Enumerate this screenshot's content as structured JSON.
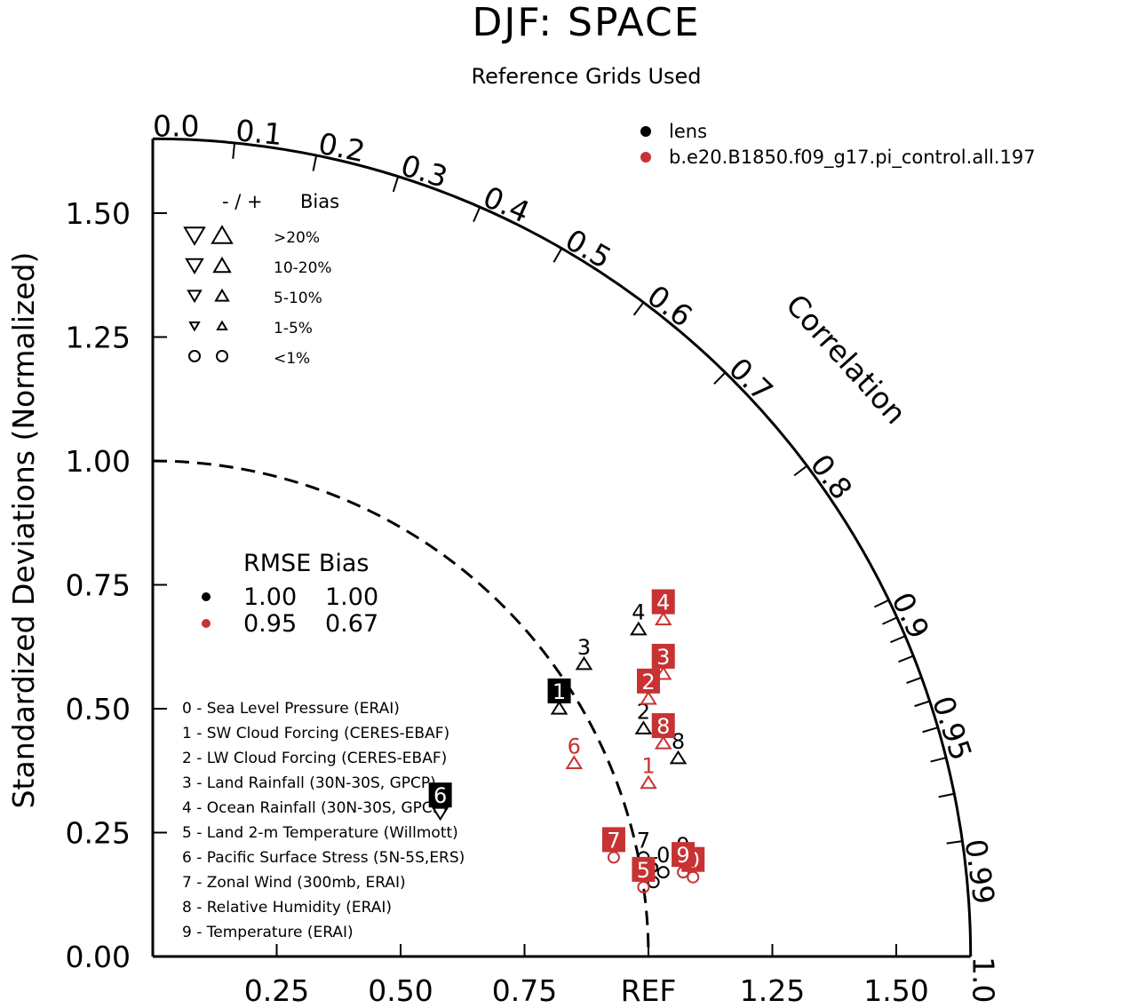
{
  "title": "DJF: SPACE",
  "subtitle": "Reference Grids Used",
  "chart_data": {
    "type": "scatter",
    "plot_kind": "taylor-diagram",
    "ylabel": "Standardized Deviations (Normalized)",
    "xlabel": "REF",
    "angular_axis_label": "Correlation",
    "x_ticks": [
      "0.25",
      "0.50",
      "0.75",
      "REF",
      "1.25",
      "1.50"
    ],
    "x_tick_values": [
      0.25,
      0.5,
      0.75,
      1.0,
      1.25,
      1.5
    ],
    "y_ticks": [
      "0.00",
      "0.25",
      "0.50",
      "0.75",
      "1.00",
      "1.25",
      "1.50"
    ],
    "y_tick_values": [
      0,
      0.25,
      0.5,
      0.75,
      1.0,
      1.25,
      1.5
    ],
    "radius_max": 1.65,
    "correlation_labels": [
      "0.0",
      "0.1",
      "0.2",
      "0.3",
      "0.4",
      "0.5",
      "0.6",
      "0.7",
      "0.8",
      "0.9",
      "0.95",
      "0.99",
      "1.0"
    ],
    "correlation_label_values": [
      0,
      0.1,
      0.2,
      0.3,
      0.4,
      0.5,
      0.6,
      0.7,
      0.8,
      0.9,
      0.95,
      0.99,
      1.0
    ],
    "reference_arc_radius": 1.0,
    "series": [
      {
        "name": "lens",
        "color": "#000000",
        "rmse": "1.00",
        "bias": "1.00",
        "points": [
          {
            "id": "0",
            "x": 1.03,
            "y": 0.17,
            "bias_marker": "circle"
          },
          {
            "id": "1",
            "x": 0.82,
            "y": 0.5,
            "bias_marker": "up-triangle"
          },
          {
            "id": "2",
            "x": 0.99,
            "y": 0.46,
            "bias_marker": "up-triangle"
          },
          {
            "id": "3",
            "x": 0.87,
            "y": 0.59,
            "bias_marker": "up-triangle"
          },
          {
            "id": "4",
            "x": 0.98,
            "y": 0.66,
            "bias_marker": "up-triangle"
          },
          {
            "id": "5",
            "x": 1.01,
            "y": 0.15,
            "bias_marker": "circle"
          },
          {
            "id": "6",
            "x": 0.58,
            "y": 0.29,
            "bias_marker": "down-triangle"
          },
          {
            "id": "7",
            "x": 0.99,
            "y": 0.2,
            "bias_marker": "circle"
          },
          {
            "id": "8",
            "x": 1.06,
            "y": 0.4,
            "bias_marker": "up-triangle"
          },
          {
            "id": "9",
            "x": 1.07,
            "y": 0.19,
            "bias_marker": "circle"
          }
        ]
      },
      {
        "name": "b.e20.B1850.f09_g17.pi_control.all.197",
        "color": "#c83232",
        "rmse": "0.95",
        "bias": "0.67",
        "points": [
          {
            "id": "0",
            "x": 1.09,
            "y": 0.16,
            "bias_marker": "circle"
          },
          {
            "id": "1",
            "x": 1.0,
            "y": 0.35,
            "bias_marker": "up-triangle"
          },
          {
            "id": "2",
            "x": 1.0,
            "y": 0.52,
            "bias_marker": "up-triangle"
          },
          {
            "id": "3",
            "x": 1.03,
            "y": 0.57,
            "bias_marker": "up-triangle"
          },
          {
            "id": "4",
            "x": 1.03,
            "y": 0.68,
            "bias_marker": "up-triangle"
          },
          {
            "id": "5",
            "x": 0.99,
            "y": 0.14,
            "bias_marker": "circle"
          },
          {
            "id": "6",
            "x": 0.85,
            "y": 0.39,
            "bias_marker": "up-triangle"
          },
          {
            "id": "7",
            "x": 0.93,
            "y": 0.2,
            "bias_marker": "circle"
          },
          {
            "id": "8",
            "x": 1.03,
            "y": 0.43,
            "bias_marker": "up-triangle"
          },
          {
            "id": "9",
            "x": 1.07,
            "y": 0.17,
            "bias_marker": "circle"
          }
        ]
      }
    ],
    "point_labels": {
      "lens": [
        {
          "text": "0",
          "boxed": false
        },
        {
          "text": "1",
          "boxed": true
        },
        {
          "text": "2",
          "boxed": false
        },
        {
          "text": "3",
          "boxed": false
        },
        {
          "text": "4",
          "boxed": false
        },
        {
          "text": "5",
          "boxed": false
        },
        {
          "text": "6",
          "boxed": true
        },
        {
          "text": "7",
          "boxed": false
        },
        {
          "text": "8",
          "boxed": false
        },
        {
          "text": "9",
          "boxed": false
        }
      ],
      "b.e20.B1850.f09_g17.pi_control.all.197": [
        {
          "text": "0",
          "boxed": true
        },
        {
          "text": "1",
          "boxed": false
        },
        {
          "text": "2",
          "boxed": true
        },
        {
          "text": "3",
          "boxed": true
        },
        {
          "text": "4",
          "boxed": true
        },
        {
          "text": "5",
          "boxed": true
        },
        {
          "text": "6",
          "boxed": false
        },
        {
          "text": "7",
          "boxed": true
        },
        {
          "text": "8",
          "boxed": true
        },
        {
          "text": "9",
          "boxed": true
        }
      ]
    },
    "variables": [
      "0 - Sea Level Pressure (ERAI)",
      "1 - SW Cloud Forcing (CERES-EBAF)",
      "2 - LW Cloud Forcing (CERES-EBAF)",
      "3 - Land Rainfall (30N-30S, GPCP)",
      "4 - Ocean Rainfall (30N-30S, GPCP)",
      "5 - Land 2-m Temperature (Willmott)",
      "6 - Pacific Surface Stress (5N-5S,ERS)",
      "7 - Zonal Wind (300mb, ERAI)",
      "8 - Relative Humidity (ERAI)",
      "9 - Temperature (ERAI)"
    ],
    "bias_key": {
      "header_signs": "- / +",
      "header_label": "Bias",
      "rows": [
        {
          "label": ">20%",
          "marker": "triangle-large"
        },
        {
          "label": "10-20%",
          "marker": "triangle-medium"
        },
        {
          "label": "5-10%",
          "marker": "triangle-small"
        },
        {
          "label": "1-5%",
          "marker": "triangle-tiny"
        },
        {
          "label": "<1%",
          "marker": "circle"
        }
      ]
    },
    "rmse_bias_header": "RMSE Bias"
  }
}
